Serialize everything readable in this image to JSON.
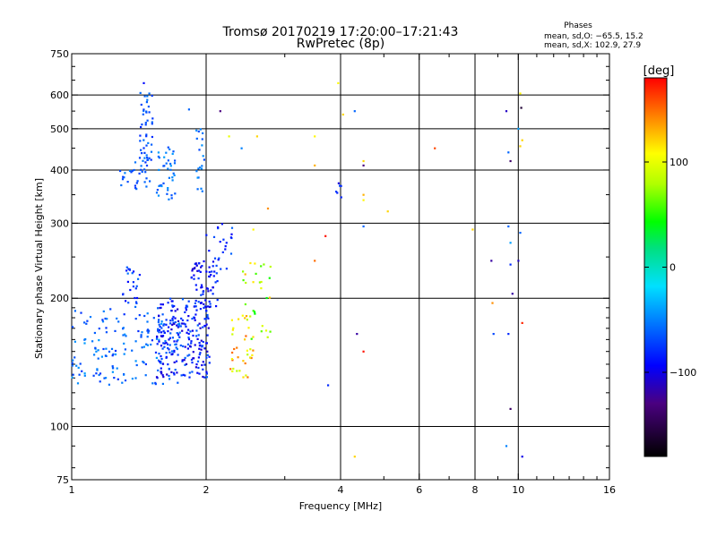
{
  "chart_data": {
    "type": "scatter",
    "title": "Tromsø 20170219 17:20:00–17:21:43",
    "subtitle": "RwPretec (8p)",
    "xlabel": "Frequency [MHz]",
    "ylabel": "Stationary phase Virtual Height [km]",
    "x_scale": "log",
    "y_scale": "log",
    "xlim": [
      1,
      16
    ],
    "ylim": [
      75,
      750
    ],
    "x_ticks": [
      1,
      2,
      4,
      6,
      8,
      10,
      16
    ],
    "y_ticks": [
      75,
      100,
      200,
      300,
      400,
      500,
      600,
      750
    ],
    "x_gridlines": [
      2,
      4,
      6,
      8,
      10
    ],
    "y_gridlines": [
      100,
      200,
      300,
      400,
      500,
      600
    ],
    "grid": true,
    "stats": {
      "title": "Phases",
      "line1": "mean, sd,O: −65.5, 15.2",
      "line2": "mean, sd,X: 102.9, 27.9"
    },
    "colorbar": {
      "label": "[deg]",
      "range": [
        -180,
        180
      ],
      "ticks": [
        100,
        0,
        -100
      ],
      "tick_labels": [
        "100",
        "0",
        "−100"
      ]
    },
    "clusters": [
      {
        "f": [
          1.0,
          1.75
        ],
        "h": [
          125,
          190
        ],
        "p": [
          -80,
          -40
        ],
        "n": 170
      },
      {
        "f": [
          1.3,
          1.42
        ],
        "h": [
          190,
          240
        ],
        "p": [
          -100,
          -50
        ],
        "n": 25
      },
      {
        "f": [
          1.55,
          2.05
        ],
        "h": [
          130,
          200
        ],
        "p": [
          -110,
          -60
        ],
        "n": 220
      },
      {
        "f": [
          1.85,
          2.12
        ],
        "h": [
          190,
          245
        ],
        "p": [
          -110,
          -70
        ],
        "n": 60
      },
      {
        "f": [
          2.0,
          2.35
        ],
        "h": [
          230,
          300
        ],
        "p": [
          -100,
          -60
        ],
        "n": 25
      },
      {
        "f": [
          2.25,
          2.55
        ],
        "h": [
          130,
          185
        ],
        "p": [
          80,
          160
        ],
        "n": 35
      },
      {
        "f": [
          2.4,
          2.8
        ],
        "h": [
          160,
          245
        ],
        "p": [
          40,
          130
        ],
        "n": 30
      },
      {
        "f": [
          1.42,
          1.52
        ],
        "h": [
          420,
          610
        ],
        "p": [
          -80,
          -50
        ],
        "n": 40
      },
      {
        "f": [
          1.28,
          1.5
        ],
        "h": [
          360,
          440
        ],
        "p": [
          -80,
          -50
        ],
        "n": 35
      },
      {
        "f": [
          1.55,
          1.72
        ],
        "h": [
          340,
          460
        ],
        "p": [
          -70,
          -40
        ],
        "n": 40
      },
      {
        "f": [
          1.9,
          1.98
        ],
        "h": [
          350,
          500
        ],
        "p": [
          -70,
          -40
        ],
        "n": 20
      },
      {
        "f": [
          3.9,
          4.05
        ],
        "h": [
          330,
          380
        ],
        "p": [
          -110,
          -70
        ],
        "n": 6
      }
    ],
    "points": [
      {
        "x": 1.83,
        "y": 555,
        "phase": -60
      },
      {
        "x": 1.45,
        "y": 640,
        "phase": -90
      },
      {
        "x": 2.15,
        "y": 550,
        "phase": -130
      },
      {
        "x": 2.25,
        "y": 480,
        "phase": 100
      },
      {
        "x": 2.4,
        "y": 450,
        "phase": -50
      },
      {
        "x": 2.6,
        "y": 480,
        "phase": 120
      },
      {
        "x": 2.75,
        "y": 325,
        "phase": 140
      },
      {
        "x": 2.55,
        "y": 290,
        "phase": 110
      },
      {
        "x": 3.5,
        "y": 480,
        "phase": 110
      },
      {
        "x": 3.5,
        "y": 410,
        "phase": 130
      },
      {
        "x": 3.5,
        "y": 245,
        "phase": 150
      },
      {
        "x": 3.7,
        "y": 280,
        "phase": 175
      },
      {
        "x": 3.75,
        "y": 125,
        "phase": -80
      },
      {
        "x": 3.95,
        "y": 640,
        "phase": 110
      },
      {
        "x": 4.05,
        "y": 540,
        "phase": 120
      },
      {
        "x": 4.3,
        "y": 550,
        "phase": -60
      },
      {
        "x": 4.5,
        "y": 420,
        "phase": 120
      },
      {
        "x": 4.5,
        "y": 410,
        "phase": -130
      },
      {
        "x": 4.5,
        "y": 350,
        "phase": 130
      },
      {
        "x": 4.5,
        "y": 340,
        "phase": 110
      },
      {
        "x": 4.5,
        "y": 295,
        "phase": -60
      },
      {
        "x": 5.1,
        "y": 320,
        "phase": 120
      },
      {
        "x": 4.3,
        "y": 85,
        "phase": 120
      },
      {
        "x": 4.35,
        "y": 165,
        "phase": -120
      },
      {
        "x": 4.5,
        "y": 150,
        "phase": 175
      },
      {
        "x": 6.5,
        "y": 450,
        "phase": 160
      },
      {
        "x": 7.9,
        "y": 290,
        "phase": 120
      },
      {
        "x": 8.7,
        "y": 245,
        "phase": -120
      },
      {
        "x": 8.75,
        "y": 195,
        "phase": 140
      },
      {
        "x": 8.8,
        "y": 165,
        "phase": -70
      },
      {
        "x": 9.4,
        "y": 550,
        "phase": -110
      },
      {
        "x": 9.5,
        "y": 440,
        "phase": -60
      },
      {
        "x": 9.6,
        "y": 420,
        "phase": -140
      },
      {
        "x": 9.5,
        "y": 295,
        "phase": -60
      },
      {
        "x": 9.6,
        "y": 270,
        "phase": -40
      },
      {
        "x": 9.7,
        "y": 205,
        "phase": -120
      },
      {
        "x": 9.5,
        "y": 165,
        "phase": -80
      },
      {
        "x": 9.6,
        "y": 110,
        "phase": -140
      },
      {
        "x": 9.4,
        "y": 90,
        "phase": -50
      },
      {
        "x": 10.1,
        "y": 605,
        "phase": 110
      },
      {
        "x": 10.15,
        "y": 560,
        "phase": -160
      },
      {
        "x": 10.0,
        "y": 500,
        "phase": -40
      },
      {
        "x": 10.2,
        "y": 470,
        "phase": 120
      },
      {
        "x": 10.1,
        "y": 455,
        "phase": 120
      },
      {
        "x": 10.1,
        "y": 285,
        "phase": -60
      },
      {
        "x": 10.0,
        "y": 245,
        "phase": -110
      },
      {
        "x": 10.2,
        "y": 175,
        "phase": 170
      },
      {
        "x": 10.2,
        "y": 85,
        "phase": -100
      },
      {
        "x": 9.6,
        "y": 240,
        "phase": -80
      }
    ]
  }
}
